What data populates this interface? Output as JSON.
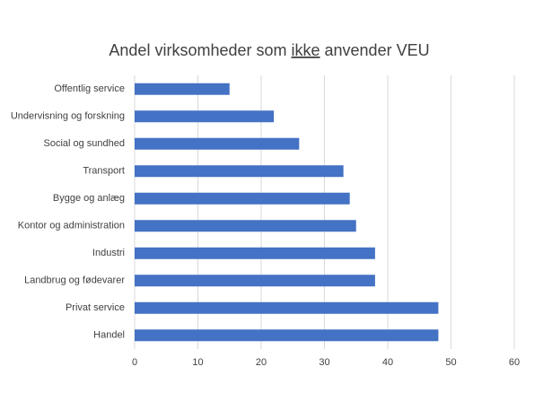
{
  "chart_data": {
    "type": "hbar",
    "title": {
      "before": "Andel virksomheder som ",
      "underlined": "ikke",
      "after": " anvender VEU"
    },
    "categories": [
      "Offentlig service",
      "Undervisning og forskning",
      "Social og sundhed",
      "Transport",
      "Bygge og anlæg",
      "Kontor og administration",
      "Industri",
      "Landbrug og fødevarer",
      "Privat service",
      "Handel"
    ],
    "values": [
      15,
      22,
      26,
      33,
      34,
      35,
      38,
      38,
      48,
      48
    ],
    "color": "#4472c4",
    "xlim": [
      0,
      60
    ],
    "xticks": [
      0,
      10,
      20,
      30,
      40,
      50,
      60
    ],
    "grid": true
  }
}
